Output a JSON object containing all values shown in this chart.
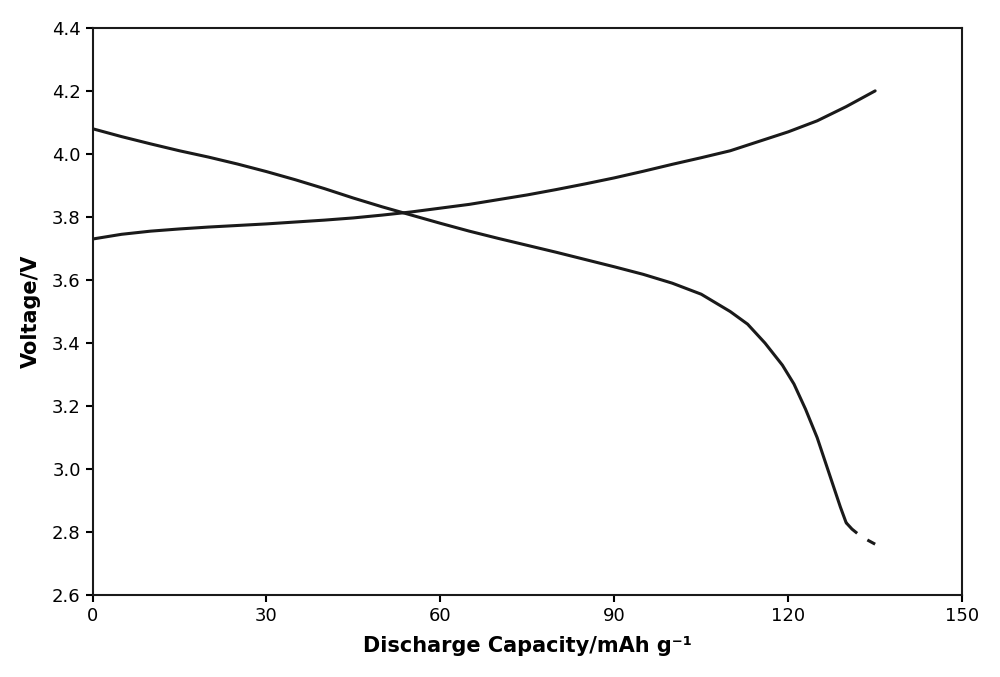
{
  "title": "",
  "xlabel": "Discharge Capacity/mAh g⁻¹",
  "ylabel": "Voltage/V",
  "xlim": [
    0,
    150
  ],
  "ylim": [
    2.6,
    4.4
  ],
  "xticks": [
    0,
    30,
    60,
    90,
    120,
    150
  ],
  "yticks": [
    2.6,
    2.8,
    3.0,
    3.2,
    3.4,
    3.6,
    3.8,
    4.0,
    4.2,
    4.4
  ],
  "line_color": "#1a1a1a",
  "background_color": "#ffffff",
  "charge_x": [
    0,
    5,
    10,
    15,
    20,
    25,
    30,
    35,
    40,
    45,
    50,
    55,
    60,
    65,
    70,
    75,
    80,
    85,
    90,
    95,
    100,
    105,
    110,
    115,
    120,
    125,
    130,
    135
  ],
  "charge_y": [
    3.73,
    3.745,
    3.755,
    3.762,
    3.768,
    3.773,
    3.778,
    3.784,
    3.79,
    3.797,
    3.806,
    3.816,
    3.828,
    3.84,
    3.855,
    3.87,
    3.887,
    3.905,
    3.924,
    3.945,
    3.967,
    3.988,
    4.01,
    4.04,
    4.07,
    4.105,
    4.15,
    4.2
  ],
  "discharge_x_solid": [
    0,
    5,
    10,
    15,
    20,
    25,
    30,
    35,
    40,
    45,
    50,
    55,
    60,
    65,
    70,
    75,
    80,
    85,
    90,
    95,
    100,
    105,
    110,
    113,
    116,
    119,
    121,
    123,
    125,
    127,
    129,
    130
  ],
  "discharge_y_solid": [
    4.08,
    4.055,
    4.032,
    4.01,
    3.99,
    3.968,
    3.944,
    3.918,
    3.89,
    3.86,
    3.832,
    3.806,
    3.78,
    3.755,
    3.732,
    3.71,
    3.688,
    3.665,
    3.642,
    3.618,
    3.59,
    3.555,
    3.5,
    3.46,
    3.4,
    3.33,
    3.27,
    3.19,
    3.1,
    2.99,
    2.88,
    2.83
  ],
  "discharge_x_dashed": [
    130,
    131,
    132,
    133,
    134,
    135
  ],
  "discharge_y_dashed": [
    2.83,
    2.81,
    2.795,
    2.782,
    2.772,
    2.762
  ],
  "linewidth": 2.2,
  "xlabel_fontsize": 15,
  "ylabel_fontsize": 15,
  "tick_fontsize": 13,
  "tick_fontweight": "normal",
  "label_fontweight": "bold"
}
